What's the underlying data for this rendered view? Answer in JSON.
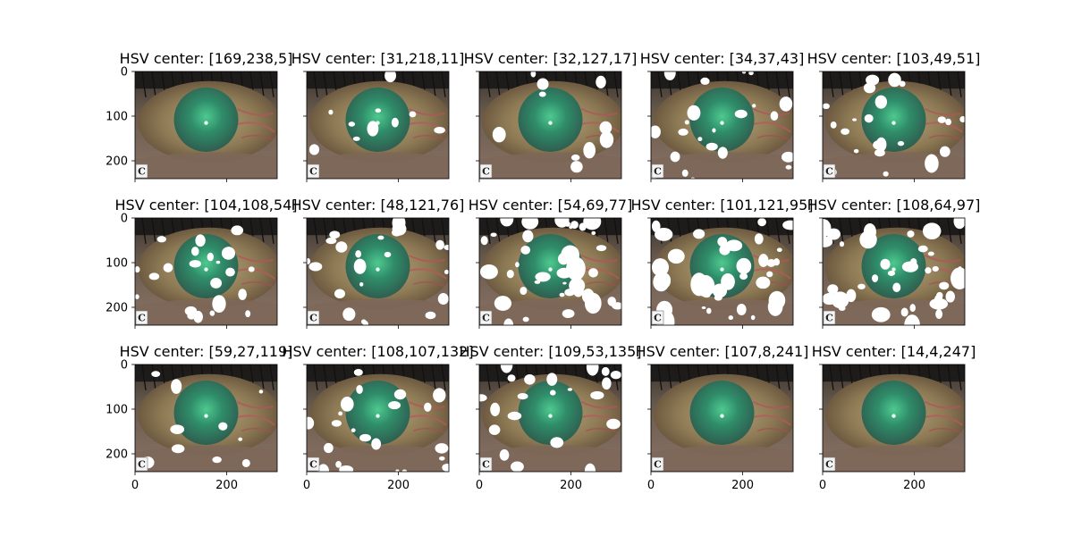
{
  "figure": {
    "rows": 3,
    "cols": 5,
    "image_corner_label": "C",
    "colors": {
      "mask": "#ffffff",
      "frame": "#000000"
    }
  },
  "chart_data": {
    "type": "image",
    "image_width": 310,
    "image_height": 240,
    "xlim": [
      0,
      310
    ],
    "ylim": [
      240,
      0
    ],
    "xticks": [
      0,
      200
    ],
    "yticks": [
      0,
      100,
      200
    ],
    "panels": [
      {
        "title": "HSV center: [169,238,5]",
        "mask_extent": "none"
      },
      {
        "title": "HSV center: [31,218,11]",
        "mask_extent": "small"
      },
      {
        "title": "HSV center: [32,127,17]",
        "mask_extent": "small"
      },
      {
        "title": "HSV center: [34,37,43]",
        "mask_extent": "medium"
      },
      {
        "title": "HSV center: [103,49,51]",
        "mask_extent": "medium"
      },
      {
        "title": "HSV center: [104,108,54]",
        "mask_extent": "medium"
      },
      {
        "title": "HSV center: [48,121,76]",
        "mask_extent": "medium"
      },
      {
        "title": "HSV center: [54,69,77]",
        "mask_extent": "large"
      },
      {
        "title": "HSV center: [101,121,95]",
        "mask_extent": "large"
      },
      {
        "title": "HSV center: [108,64,97]",
        "mask_extent": "large"
      },
      {
        "title": "HSV center: [59,27,119]",
        "mask_extent": "small"
      },
      {
        "title": "HSV center: [108,107,132]",
        "mask_extent": "medium"
      },
      {
        "title": "HSV center: [109,53,135]",
        "mask_extent": "medium"
      },
      {
        "title": "HSV center: [107,8,241]",
        "mask_extent": "none"
      },
      {
        "title": "HSV center: [14,4,247]",
        "mask_extent": "none"
      }
    ]
  }
}
